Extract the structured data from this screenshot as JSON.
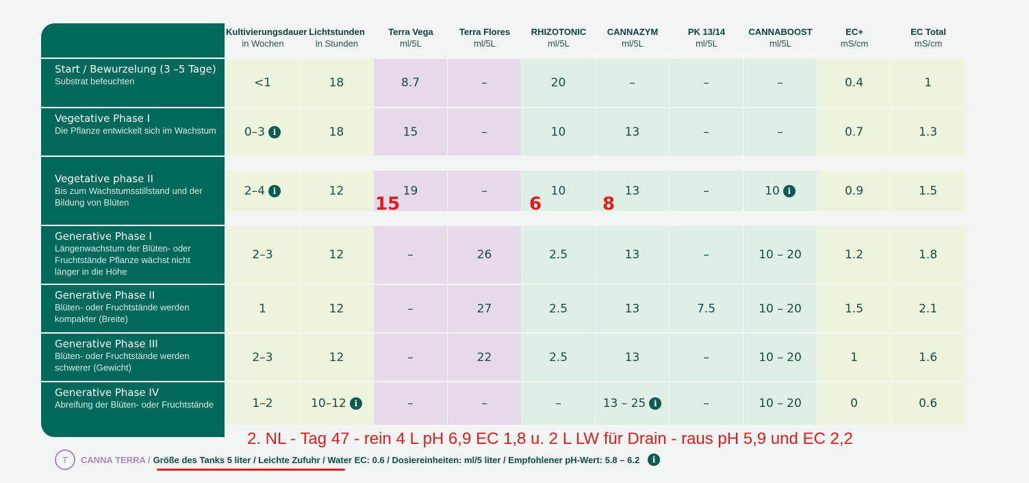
{
  "columns": [
    {
      "title": "Kultivierungsdauer",
      "unit": "in Wochen"
    },
    {
      "title": "Lichtstunden",
      "unit": "in Stunden"
    },
    {
      "title": "Terra Vega",
      "unit": "ml/5L"
    },
    {
      "title": "Terra Flores",
      "unit": "ml/5L"
    },
    {
      "title": "RHIZOTONIC",
      "unit": "ml/5L"
    },
    {
      "title": "CANNAZYM",
      "unit": "ml/5L"
    },
    {
      "title": "PK 13/14",
      "unit": "ml/5L"
    },
    {
      "title": "CANNABOOST",
      "unit": "ml/5L"
    },
    {
      "title": "EC+",
      "unit": "mS/cm"
    },
    {
      "title": "EC Total",
      "unit": "mS/cm"
    }
  ],
  "column_colors": [
    "#eef3db",
    "#eef3db",
    "#e6dae8",
    "#e6dae8",
    "#e0efe6",
    "#e0efe6",
    "#e0efe6",
    "#e0efe6",
    "#eef3db",
    "#eef3db"
  ],
  "rows": [
    {
      "title": "Start / Bewurzelung (3 –5 Tage)",
      "desc": "Substrat befeuchten",
      "cells": [
        {
          "v": "<1"
        },
        {
          "v": "18"
        },
        {
          "v": "8.7"
        },
        {
          "v": "–"
        },
        {
          "v": "20"
        },
        {
          "v": "–"
        },
        {
          "v": "–"
        },
        {
          "v": "–"
        },
        {
          "v": "0.4"
        },
        {
          "v": "1"
        }
      ]
    },
    {
      "title": "Vegetative Phase I",
      "desc": "Die Pflanze entwickelt sich im Wachstum",
      "cells": [
        {
          "v": "0–3",
          "info": true
        },
        {
          "v": "18"
        },
        {
          "v": "15"
        },
        {
          "v": "–"
        },
        {
          "v": "10"
        },
        {
          "v": "13"
        },
        {
          "v": "–"
        },
        {
          "v": "–"
        },
        {
          "v": "0.7"
        },
        {
          "v": "1.3"
        }
      ]
    },
    {
      "title": "Vegetative phase II",
      "desc": "Bis zum Wachstumsstillstand und der Bildung von Blüten",
      "cells": [
        {
          "v": "2–4",
          "info": true
        },
        {
          "v": "12"
        },
        {
          "v": "19"
        },
        {
          "v": "–"
        },
        {
          "v": "10"
        },
        {
          "v": "13"
        },
        {
          "v": "–"
        },
        {
          "v": "10",
          "info": true
        },
        {
          "v": "0.9"
        },
        {
          "v": "1.5"
        }
      ]
    },
    {
      "title": "Generative Phase I",
      "desc": "Längenwachstum der Blüten- oder Fruchtstände Pflanze wächst nicht länger in die Höhe",
      "cells": [
        {
          "v": "2–3"
        },
        {
          "v": "12"
        },
        {
          "v": "–"
        },
        {
          "v": "26"
        },
        {
          "v": "2.5"
        },
        {
          "v": "13"
        },
        {
          "v": "–"
        },
        {
          "v": "10 – 20"
        },
        {
          "v": "1.2"
        },
        {
          "v": "1.8"
        }
      ]
    },
    {
      "title": "Generative Phase II",
      "desc": "Blüten- oder Fruchtstände werden kompakter (Breite)",
      "cells": [
        {
          "v": "1"
        },
        {
          "v": "12"
        },
        {
          "v": "–"
        },
        {
          "v": "27"
        },
        {
          "v": "2.5"
        },
        {
          "v": "13"
        },
        {
          "v": "7.5"
        },
        {
          "v": "10 – 20"
        },
        {
          "v": "1.5"
        },
        {
          "v": "2.1"
        }
      ]
    },
    {
      "title": "Generative Phase III",
      "desc": "Blüten- oder Fruchtstände werden schwerer (Gewicht)",
      "cells": [
        {
          "v": "2–3"
        },
        {
          "v": "12"
        },
        {
          "v": "–"
        },
        {
          "v": "22"
        },
        {
          "v": "2.5"
        },
        {
          "v": "13"
        },
        {
          "v": "–"
        },
        {
          "v": "10 – 20"
        },
        {
          "v": "1"
        },
        {
          "v": "1.6"
        }
      ]
    },
    {
      "title": "Generative Phase IV",
      "desc": "Abreifung der Blüten- oder Fruchtstände",
      "cells": [
        {
          "v": "1–2"
        },
        {
          "v": "10–12",
          "info": true
        },
        {
          "v": "–"
        },
        {
          "v": "–"
        },
        {
          "v": "–"
        },
        {
          "v": "13 – 25",
          "info": true
        },
        {
          "v": "–"
        },
        {
          "v": "10 – 20"
        },
        {
          "v": "0"
        },
        {
          "v": "0.6"
        }
      ]
    }
  ],
  "info_glyph": "i",
  "annotations": {
    "n15": "15",
    "n6": "6",
    "n8": "8",
    "line": "2. NL - Tag 47 - rein 4 L pH 6,9 EC 1,8 u. 2 L LW für Drain - raus pH 5,9 und EC 2,2"
  },
  "footer": {
    "logo_letter": "T",
    "brand": "CANNA TERRA /",
    "text": "Größe des Tanks 5 liter / Leichte Zufuhr / Water EC: 0.6 / Dosiereinheiten: ml/5 liter / Empfohlener pH-Wert: 5.8 – 6.2"
  }
}
